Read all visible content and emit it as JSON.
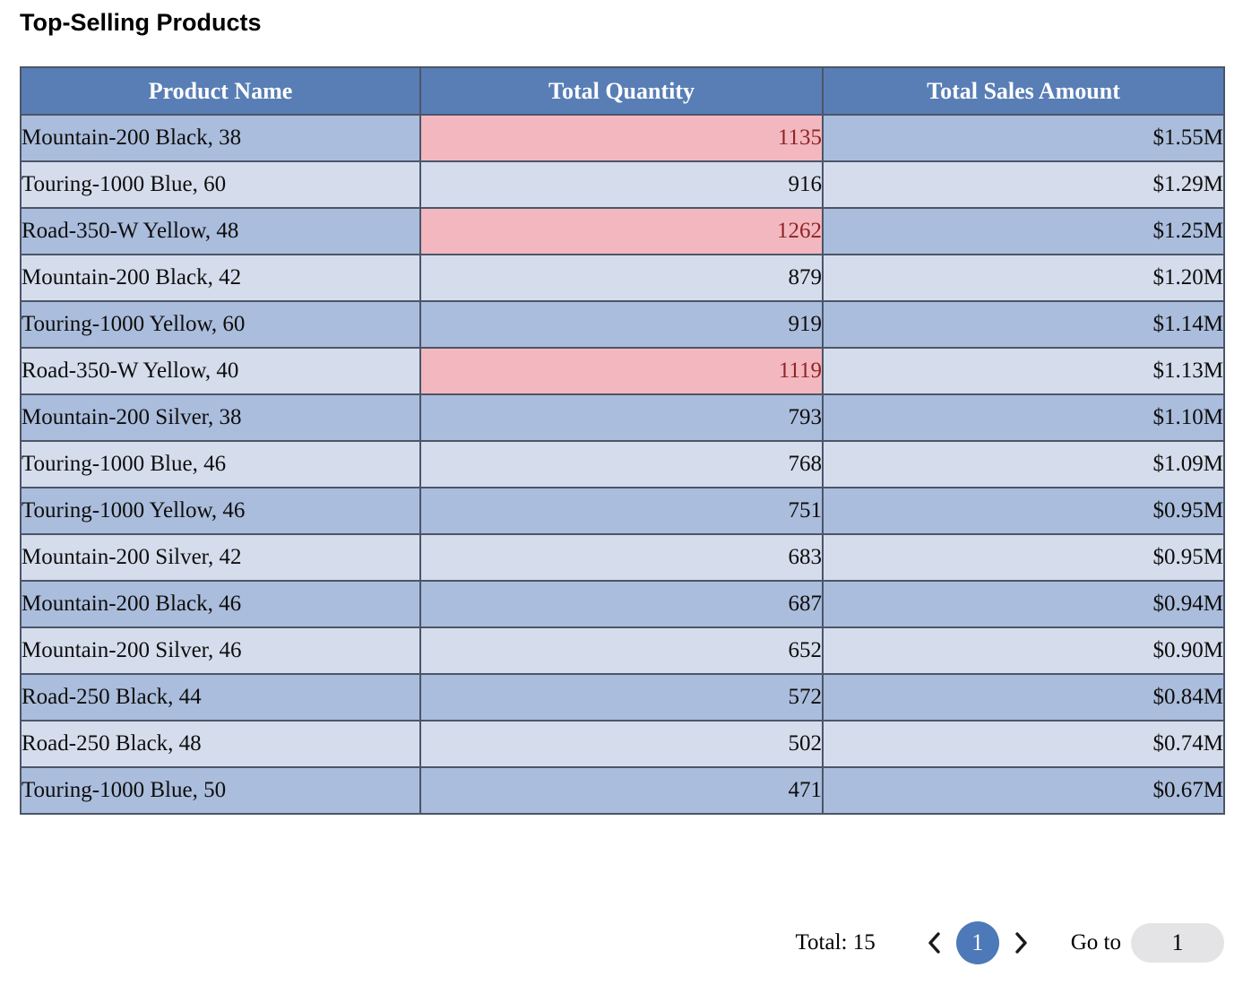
{
  "title": "Top-Selling Products",
  "table": {
    "columns": [
      "Product Name",
      "Total Quantity",
      "Total Sales Amount"
    ],
    "rows": [
      {
        "name": "Mountain-200 Black, 38",
        "qty": "1135",
        "sales": "$1.55M",
        "highlight": true
      },
      {
        "name": "Touring-1000 Blue, 60",
        "qty": "916",
        "sales": "$1.29M",
        "highlight": false
      },
      {
        "name": "Road-350-W Yellow, 48",
        "qty": "1262",
        "sales": "$1.25M",
        "highlight": true
      },
      {
        "name": "Mountain-200 Black, 42",
        "qty": "879",
        "sales": "$1.20M",
        "highlight": false
      },
      {
        "name": "Touring-1000 Yellow, 60",
        "qty": "919",
        "sales": "$1.14M",
        "highlight": false
      },
      {
        "name": "Road-350-W Yellow, 40",
        "qty": "1119",
        "sales": "$1.13M",
        "highlight": true
      },
      {
        "name": "Mountain-200 Silver, 38",
        "qty": "793",
        "sales": "$1.10M",
        "highlight": false
      },
      {
        "name": "Touring-1000 Blue, 46",
        "qty": "768",
        "sales": "$1.09M",
        "highlight": false
      },
      {
        "name": "Touring-1000 Yellow, 46",
        "qty": "751",
        "sales": "$0.95M",
        "highlight": false
      },
      {
        "name": "Mountain-200 Silver, 42",
        "qty": "683",
        "sales": "$0.95M",
        "highlight": false
      },
      {
        "name": "Mountain-200 Black, 46",
        "qty": "687",
        "sales": "$0.94M",
        "highlight": false
      },
      {
        "name": "Mountain-200 Silver, 46",
        "qty": "652",
        "sales": "$0.90M",
        "highlight": false
      },
      {
        "name": "Road-250 Black, 44",
        "qty": "572",
        "sales": "$0.84M",
        "highlight": false
      },
      {
        "name": "Road-250 Black, 48",
        "qty": "502",
        "sales": "$0.74M",
        "highlight": false
      },
      {
        "name": "Touring-1000 Blue, 50",
        "qty": "471",
        "sales": "$0.67M",
        "highlight": false
      }
    ]
  },
  "pagination": {
    "total_label": "Total: 15",
    "current_page": "1",
    "goto_label": "Go to",
    "goto_value": "1",
    "prev_icon": "chevron-left",
    "next_icon": "chevron-right"
  },
  "colors": {
    "header_bg": "#587eb5",
    "row_dark": "#abbddc",
    "row_light": "#d5ddec",
    "highlight_bg": "#f3b8bf",
    "highlight_text": "#8e2428",
    "active_page_bg": "#4d79b8",
    "goto_input_bg": "#e4e4e7"
  }
}
